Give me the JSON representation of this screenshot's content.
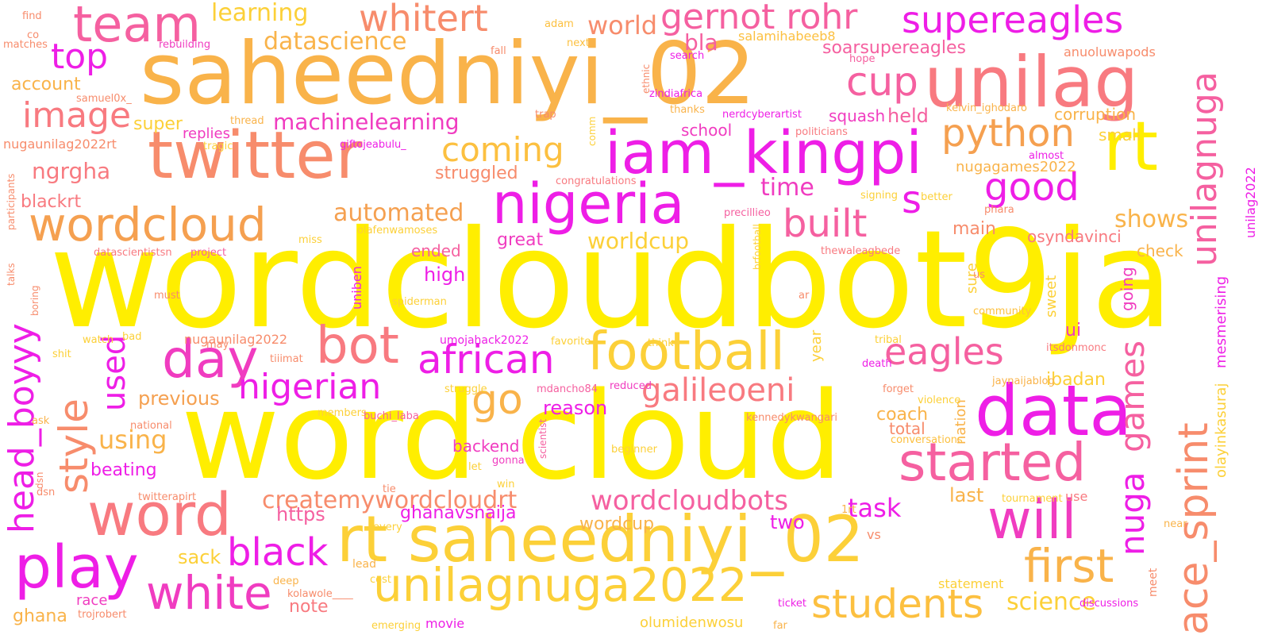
{
  "palette": {
    "background": "#ffffff",
    "yellow": "#ffee00",
    "gold": "#fcc040",
    "orange": "#f5a050",
    "salmon": "#f78c6c",
    "coral": "#f87a80",
    "pink": "#f560a0",
    "hotpink": "#f03cc0",
    "magenta": "#ee1ee6"
  },
  "words": {
    "wordcloudbot9ja": "wordcloudbot9ja",
    "word_cloud": "word cloud",
    "saheedniyi_02": "saheedniyi_02",
    "rt_saheedniyi_02": "rt saheedniyi_02",
    "unilag": "unilag",
    "twitter": "twitter",
    "iam_kingpi": "iam_kingpi",
    "nigeria": "nigeria",
    "rt": "rt",
    "data": "data",
    "football": "football",
    "started": "started",
    "unilagnuga2022": "unilagnuga2022",
    "play": "play",
    "word": "word",
    "wordcloud": "wordcloud",
    "team": "team",
    "bot": "bot",
    "day": "day",
    "white": "white",
    "first": "first",
    "will": "will",
    "students": "students",
    "african": "african",
    "eagles": "eagles",
    "supereagles": "supereagles",
    "gernot_rohr": "gernot rohr",
    "whitert": "whitert",
    "python": "python",
    "cup": "cup",
    "good": "good",
    "built": "built",
    "coming": "coming",
    "nigerian": "nigerian",
    "galileoeni": "galileoeni",
    "black": "black",
    "image": "image",
    "top": "top",
    "ace_sprint": "ace_sprint",
    "unilagnuga": "unilagnuga",
    "head_boyyy": "head_boyyy",
    "style": "style",
    "createmywordcloudrt": "createmywordcloudrt",
    "wordcloudbots": "wordcloudbots",
    "nuga": "nuga",
    "games": "games",
    "go": "go",
    "used": "used",
    "machinelearning": "machinelearning",
    "datascience": "datascience",
    "learning": "learning",
    "automated": "automated",
    "worldcup": "worldcup",
    "world": "world",
    "task": "task",
    "s": "s",
    "ngrgha": "ngrgha",
    "using": "using",
    "time": "time",
    "science": "science",
    "shows": "shows",
    "unilag2022": "unilag2022",
    "mesmerising": "mesmerising",
    "olayinkasuraj": "olayinkasuraj",
    "bla": "bla",
    "account": "account",
    "super": "super",
    "replies": "replies",
    "struggled": "struggled",
    "blackrt": "blackrt",
    "previous": "previous",
    "beating": "beating",
    "sack": "sack",
    "race": "race",
    "ghana": "ghana",
    "note": "note",
    "https": "https",
    "ghanavsnaija": "ghanavsnaija",
    "wordcup": "wordcup",
    "two": "two",
    "last": "last",
    "coach": "coach",
    "total": "total",
    "nation": "nation",
    "reason": "reason",
    "backend": "backend",
    "great": "great",
    "ended": "ended",
    "high": "high",
    "year": "year",
    "ibadan": "ibadan",
    "ui": "ui",
    "sweet": "sweet",
    "going": "going",
    "sure": "sure",
    "check": "check",
    "main": "main",
    "osyndavinci": "osyndavinci",
    "nugagames2022": "nugagames2022",
    "small": "small",
    "corruption": "corruption",
    "held": "held",
    "squash": "squash",
    "school": "school",
    "soarsupereagles": "soarsupereagles",
    "salamihabeeb8": "salamihabeeb8",
    "anuoluwapods": "anuoluwapods",
    "nugaunilag2022rt": "nugaunilag2022rt",
    "nugaunilag2022": "nugaunilag2022",
    "umojahack2022": "umojahack2022",
    "olumidenwosu": "olumidenwosu",
    "movie": "movie",
    "statement": "statement",
    "use": "use",
    "lead": "lead",
    "find": "find",
    "co": "co",
    "matches": "matches",
    "rebuilding": "rebuilding",
    "adam": "adam",
    "next": "next",
    "fall": "fall",
    "ethnic": "ethnic",
    "search": "search",
    "hope": "hope",
    "zindiafrica": "zindiafrica",
    "samuel0x_": "samuel0x_",
    "trap": "trap",
    "thanks": "thanks",
    "nerdcyberartist": "nerdcyberartist",
    "kelvin_ighodaro": "kelvin_ighodaro",
    "thread": "thread",
    "tragic": "tragic",
    "giftojeabulu_": "giftojeabulu_",
    "comm": "comm",
    "politicians": "politicians",
    "participants": "participants",
    "congratulations": "congratulations",
    "almost": "almost",
    "signing": "signing",
    "better": "better",
    "phara": "phara",
    "precillieo": "precillieo",
    "miss": "miss",
    "olafenwamoses": "olafenwamoses",
    "brfootball": "brfootball",
    "datascientistsn": "datascientistsn",
    "project": "project",
    "thewaleagbede": "thewaleagbede",
    "talks": "talks",
    "must": "must",
    "uniben": "uniben",
    "spiderman": "spiderman",
    "ar": "ar",
    "us": "us",
    "community": "community",
    "boring": "boring",
    "watch": "watch",
    "bad": "bad",
    "favorite": "favorite",
    "think": "think",
    "tribal": "tribal",
    "shit": "shit",
    "may": "may",
    "tiiimat": "tiiimat",
    "death": "death",
    "itsdonmonc": "itsdonmonc",
    "reduced": "reduced",
    "jaynaijablog": "jaynaijablog",
    "struggle": "struggle",
    "mdancho84": "mdancho84",
    "forget": "forget",
    "violence": "violence",
    "ask": "ask",
    "national": "national",
    "members": "members",
    "buchi_laba": "buchi_laba",
    "kennedykwangari": "kennedykwangari",
    "scientist": "scientist",
    "conversations": "conversations",
    "beginner": "beginner",
    "gonna": "gonna",
    "let": "let",
    "dsn": "dsn",
    "twitterapirt": "twitterapirt",
    "win": "win",
    "tie": "tie",
    "tournament": "tournament",
    "1rt": "1rt",
    "every": "every",
    "vs": "vs",
    "near": "near",
    "deep": "deep",
    "cost": "cost",
    "meet": "meet",
    "discussions": "discussions",
    "kolawole____": "kolawole____",
    "ticket": "ticket",
    "trojrobert": "trojrobert",
    "emerging": "emerging",
    "far": "far"
  }
}
